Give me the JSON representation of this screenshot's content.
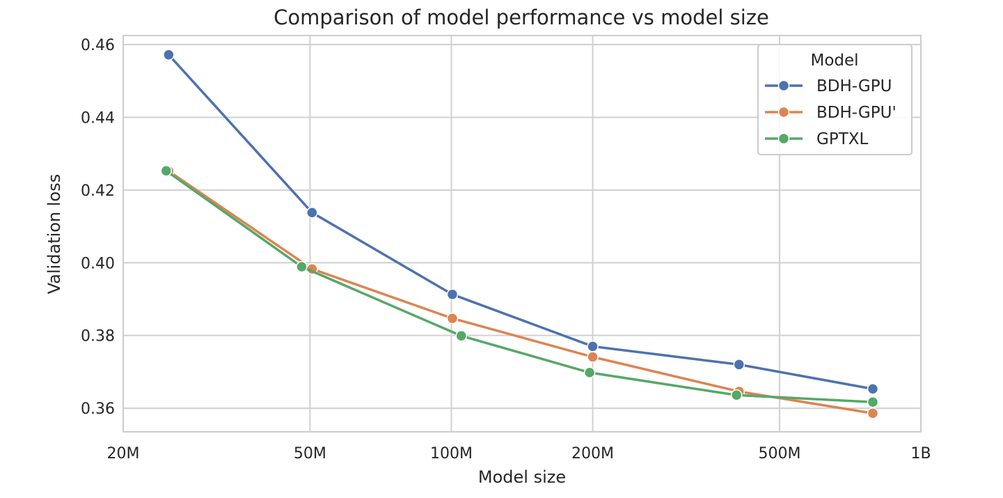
{
  "chart_data": {
    "type": "line",
    "title": "Comparison of model performance vs model size",
    "xlabel": "Model size",
    "ylabel": "Validation loss",
    "x_scale": "log",
    "xlim": [
      20000000,
      1000000000
    ],
    "ylim": [
      0.3535,
      0.4625
    ],
    "x_ticks": [
      {
        "value": 20000000,
        "label": "20M"
      },
      {
        "value": 50000000,
        "label": "50M"
      },
      {
        "value": 100000000,
        "label": "100M"
      },
      {
        "value": 200000000,
        "label": "200M"
      },
      {
        "value": 500000000,
        "label": "500M"
      },
      {
        "value": 1000000000,
        "label": "1B"
      }
    ],
    "y_ticks": [
      {
        "value": 0.36,
        "label": "0.36"
      },
      {
        "value": 0.38,
        "label": "0.38"
      },
      {
        "value": 0.4,
        "label": "0.40"
      },
      {
        "value": 0.42,
        "label": "0.42"
      },
      {
        "value": 0.44,
        "label": "0.44"
      },
      {
        "value": 0.46,
        "label": "0.46"
      }
    ],
    "grid": true,
    "legend": {
      "title": "Model",
      "position": "top-right"
    },
    "series": [
      {
        "name": "BDH-GPU",
        "color": "#4c72b0",
        "x": [
          25000000,
          50500000,
          100500000,
          200000000,
          410000000,
          790000000
        ],
        "y": [
          0.4572,
          0.4138,
          0.3913,
          0.377,
          0.372,
          0.3653
        ]
      },
      {
        "name": "BDH-GPU'",
        "color": "#dd8452",
        "x": [
          25000000,
          50500000,
          100500000,
          200000000,
          410000000,
          790000000
        ],
        "y": [
          0.4252,
          0.3983,
          0.3847,
          0.3741,
          0.3646,
          0.3586
        ]
      },
      {
        "name": "GPTXL",
        "color": "#55a868",
        "x": [
          24700000,
          48000000,
          105000000,
          197000000,
          405000000,
          790000000
        ],
        "y": [
          0.4253,
          0.3989,
          0.3799,
          0.3698,
          0.3636,
          0.3617
        ]
      }
    ]
  }
}
